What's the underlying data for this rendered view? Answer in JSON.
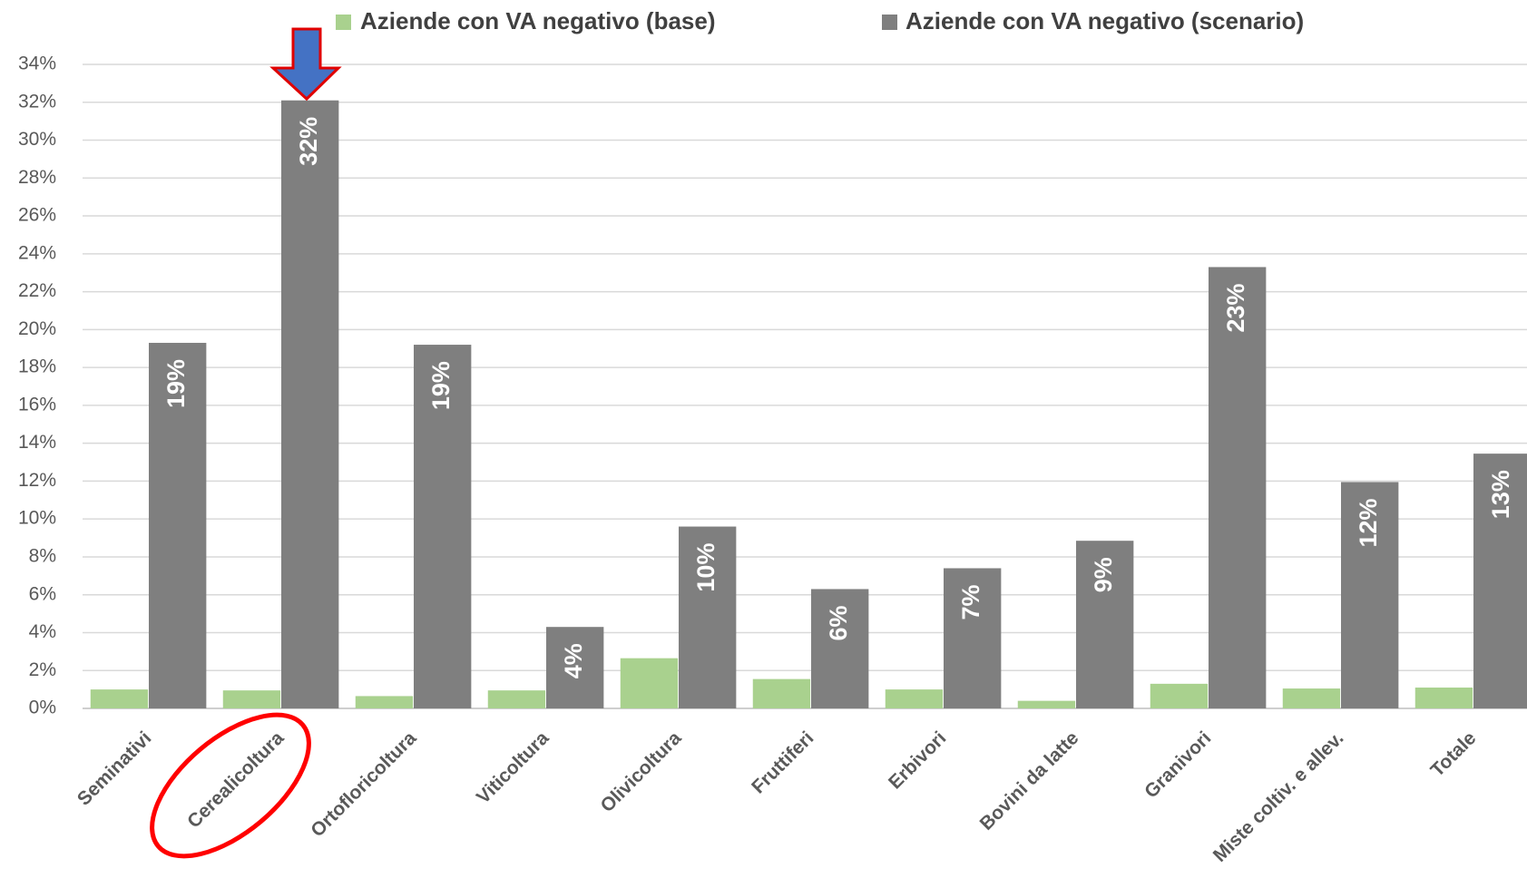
{
  "chart_data": {
    "type": "bar",
    "categories": [
      "Seminativi",
      "Cerealicoltura",
      "Ortofloricoltura",
      "Viticoltura",
      "Olivicoltura",
      "Fruttiferi",
      "Erbivori",
      "Bovini da latte",
      "Granivori",
      "Miste coltiv. e allev.",
      "Totale"
    ],
    "series": [
      {
        "name": "Aziende con VA negativo (base)",
        "color": "#a9d18e",
        "values": [
          1.0,
          0.95,
          0.65,
          0.95,
          2.65,
          1.55,
          1.0,
          0.4,
          1.3,
          1.05,
          1.1
        ]
      },
      {
        "name": "Aziende con VA negativo (scenario)",
        "color": "#7f7f7f",
        "values": [
          19.3,
          32.1,
          19.2,
          4.3,
          9.6,
          6.3,
          7.4,
          8.85,
          23.3,
          11.95,
          13.45
        ],
        "value_labels": [
          "19%",
          "32%",
          "19%",
          "4%",
          "10%",
          "6%",
          "7%",
          "9%",
          "23%",
          "12%",
          "13%"
        ]
      }
    ],
    "ylim": [
      0,
      34
    ],
    "yticks": [
      {
        "value": 0,
        "label": "0%"
      },
      {
        "value": 2,
        "label": "2%"
      },
      {
        "value": 4,
        "label": "4%"
      },
      {
        "value": 6,
        "label": "6%"
      },
      {
        "value": 8,
        "label": "8%"
      },
      {
        "value": 10,
        "label": "10%"
      },
      {
        "value": 12,
        "label": "12%"
      },
      {
        "value": 14,
        "label": "14%"
      },
      {
        "value": 16,
        "label": "16%"
      },
      {
        "value": 18,
        "label": "18%"
      },
      {
        "value": 20,
        "label": "20%"
      },
      {
        "value": 22,
        "label": "22%"
      },
      {
        "value": 24,
        "label": "24%"
      },
      {
        "value": 26,
        "label": "26%"
      },
      {
        "value": 28,
        "label": "28%"
      },
      {
        "value": 30,
        "label": "30%"
      },
      {
        "value": 32,
        "label": "32%"
      },
      {
        "value": 34,
        "label": "34%"
      }
    ],
    "grid": true,
    "legend": "top"
  }
}
